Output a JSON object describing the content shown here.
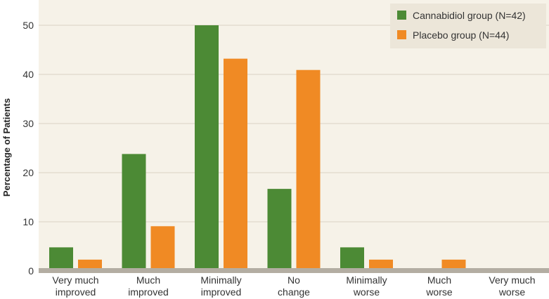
{
  "chart_data": {
    "type": "bar",
    "title": "",
    "xlabel": "",
    "ylabel": "Percentage of Patients",
    "ylim": [
      0,
      55
    ],
    "yticks": [
      0,
      10,
      20,
      30,
      40,
      50
    ],
    "grid": true,
    "legend_position": "top-right",
    "categories": [
      [
        "Very much",
        "improved"
      ],
      [
        "Much",
        "improved"
      ],
      [
        "Minimally",
        "improved"
      ],
      [
        "No",
        "change"
      ],
      [
        "Minimally",
        "worse"
      ],
      [
        "Much",
        "worse"
      ],
      [
        "Very much",
        "worse"
      ]
    ],
    "series": [
      {
        "name": "Cannabidiol group (N=42)",
        "color": "#4c8a35",
        "values": [
          4.8,
          23.8,
          50.0,
          16.7,
          4.8,
          0,
          0
        ]
      },
      {
        "name": "Placebo group (N=44)",
        "color": "#f08a24",
        "values": [
          2.3,
          9.1,
          43.2,
          40.9,
          2.3,
          2.3,
          0
        ]
      }
    ],
    "colors": {
      "background": "#f6f2e8",
      "grid": "#d9d3c4",
      "axis": "#b3ada2",
      "legend_bg": "#ece6d9"
    }
  }
}
